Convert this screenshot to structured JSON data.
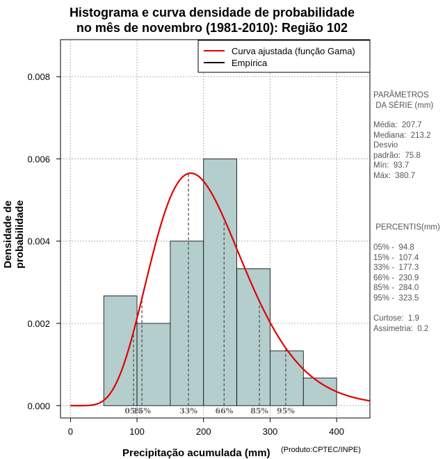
{
  "chart_data": {
    "type": "bar",
    "title_line1": "Histograma e curva densidade de probabilidade",
    "title_line2": "no mês de novembro (1981-2010): Região 102",
    "xlabel": "Precipitação acumulada (mm)",
    "ylabel": "Densidade de probabilidade",
    "credit": "(Produto:CPTEC/INPE)",
    "xlim": [
      -15,
      450
    ],
    "ylim": [
      -0.0003,
      0.0089
    ],
    "x_ticks": [
      0,
      100,
      200,
      300,
      400
    ],
    "x_tick_labels": [
      "0",
      "100",
      "200",
      "300",
      "400"
    ],
    "y_ticks": [
      0,
      0.002,
      0.004,
      0.006,
      0.008
    ],
    "y_tick_labels": [
      "0.000",
      "0.002",
      "0.004",
      "0.006",
      "0.008"
    ],
    "bars": [
      {
        "start": 50,
        "end": 100,
        "value": 0.00267
      },
      {
        "start": 100,
        "end": 150,
        "value": 0.002
      },
      {
        "start": 150,
        "end": 200,
        "value": 0.004
      },
      {
        "start": 200,
        "end": 250,
        "value": 0.006
      },
      {
        "start": 250,
        "end": 300,
        "value": 0.00333
      },
      {
        "start": 300,
        "end": 350,
        "value": 0.00133
      },
      {
        "start": 350,
        "end": 400,
        "value": 0.00067
      }
    ],
    "fitted_curve": {
      "name": "Curva ajustada (função Gama)",
      "shape": 7.73,
      "scale": 26.87
    },
    "empirical_label": "Empírica",
    "percentile_markers": [
      {
        "x": 94.8,
        "label": "05%"
      },
      {
        "x": 107.4,
        "label": "15%"
      },
      {
        "x": 177.3,
        "label": "33%"
      },
      {
        "x": 230.9,
        "label": "66%"
      },
      {
        "x": 284.0,
        "label": "85%"
      },
      {
        "x": 323.5,
        "label": "95%"
      }
    ],
    "grid": true,
    "legend_position": "top-right"
  },
  "side_panel": {
    "params_header": "PARÂMETROS\n DA SÉRIE (mm)",
    "params": "Média:  207.7\nMediana:  213.2\nDesvio\npadrão:  75.8\nMín:  93.7\nMáx:  380.7",
    "percentis_header": " PERCENTIS(mm)",
    "percentis": "05% -  94.8\n15% -  107.4\n33% -  177.3\n66% -  230.9\n85% -  284.0\n95% -  323.5",
    "stats": "Curtose:  1.9\nAssimetria:  0.2"
  },
  "colors": {
    "bar_fill": "#b4cdcd",
    "curve": "#e00000",
    "empirical": "#000000"
  }
}
